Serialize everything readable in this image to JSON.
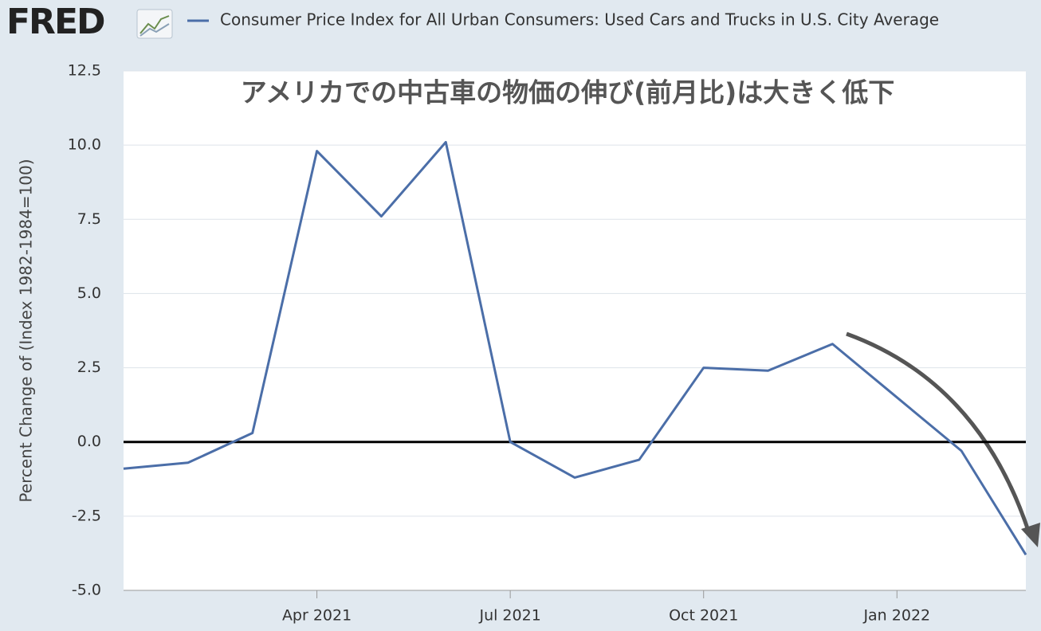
{
  "header": {
    "logo": "FRED"
  },
  "chart_data": {
    "type": "line",
    "title": "アメリカでの中古車の物価の伸び(前月比)は大きく低下",
    "y_label": "Percent Change of (Index 1982-1984=100)",
    "x": [
      "2021-01",
      "2021-02",
      "2021-03",
      "2021-04",
      "2021-05",
      "2021-06",
      "2021-07",
      "2021-08",
      "2021-09",
      "2021-10",
      "2021-11",
      "2021-12",
      "2022-01",
      "2022-02",
      "2022-03"
    ],
    "series": [
      {
        "name": "Consumer Price Index for All Urban Consumers: Used Cars and Trucks in U.S. City Average",
        "color": "#4b6ea8",
        "values": [
          -0.9,
          -0.7,
          0.3,
          9.8,
          7.6,
          10.1,
          0.0,
          -1.2,
          -0.6,
          2.5,
          2.4,
          3.3,
          1.5,
          -0.3,
          -3.8
        ]
      }
    ],
    "xticks": [
      {
        "value": "2021-04",
        "label": "Apr 2021"
      },
      {
        "value": "2021-07",
        "label": "Jul 2021"
      },
      {
        "value": "2021-10",
        "label": "Oct 2021"
      },
      {
        "value": "2022-01",
        "label": "Jan 2022"
      }
    ],
    "ylim": [
      -5,
      12.5
    ],
    "yticks": [
      {
        "value": -5,
        "label": "-5.0"
      },
      -2.5,
      {
        "value": 0,
        "label": "0.0"
      },
      2.5,
      {
        "value": 5,
        "label": "5.0"
      },
      7.5,
      {
        "value": 10,
        "label": "10.0"
      },
      12.5
    ],
    "grid": true,
    "zero_line": true
  }
}
